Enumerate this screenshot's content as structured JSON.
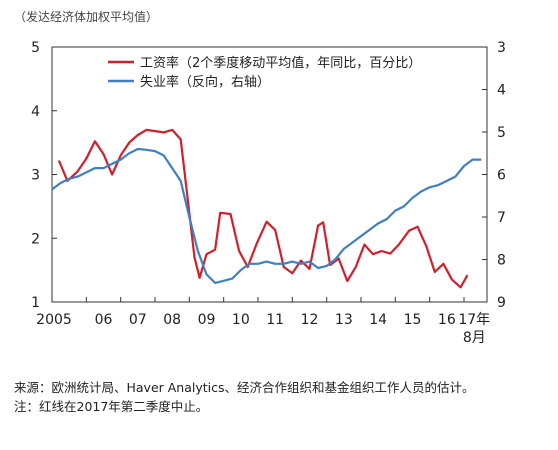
{
  "chart_data": {
    "type": "line",
    "title": "",
    "unit_label": "（发达经济体加权平均值）",
    "x_tick_labels": [
      "2005",
      "06",
      "07",
      "08",
      "09",
      "10",
      "11",
      "12",
      "13",
      "14",
      "15",
      "16",
      "17年",
      "8月"
    ],
    "y_left": {
      "ylim": [
        1,
        5
      ],
      "ticks": [
        1,
        2,
        3,
        4,
        5
      ]
    },
    "y_right": {
      "ylim": [
        9,
        3
      ],
      "inverted": true,
      "ticks": [
        3,
        4,
        5,
        6,
        7,
        8,
        9
      ]
    },
    "legend": {
      "placement": "top-center"
    },
    "grid": false,
    "series": [
      {
        "name": "工资率（2个季度移动平均值，年同比，百分比）",
        "axis": "left",
        "color": "#d0202a",
        "points": [
          [
            2005.2,
            3.22
          ],
          [
            2005.45,
            2.9
          ],
          [
            2005.75,
            3.05
          ],
          [
            2006.0,
            3.25
          ],
          [
            2006.25,
            3.52
          ],
          [
            2006.5,
            3.32
          ],
          [
            2006.75,
            3.0
          ],
          [
            2007.0,
            3.3
          ],
          [
            2007.25,
            3.5
          ],
          [
            2007.5,
            3.62
          ],
          [
            2007.75,
            3.7
          ],
          [
            2008.0,
            3.68
          ],
          [
            2008.25,
            3.66
          ],
          [
            2008.5,
            3.7
          ],
          [
            2008.75,
            3.55
          ],
          [
            2009.0,
            2.4
          ],
          [
            2009.15,
            1.7
          ],
          [
            2009.3,
            1.38
          ],
          [
            2009.5,
            1.75
          ],
          [
            2009.75,
            1.82
          ],
          [
            2009.9,
            2.4
          ],
          [
            2010.2,
            2.38
          ],
          [
            2010.45,
            1.8
          ],
          [
            2010.7,
            1.55
          ],
          [
            2010.95,
            1.9
          ],
          [
            2011.25,
            2.26
          ],
          [
            2011.5,
            2.13
          ],
          [
            2011.75,
            1.55
          ],
          [
            2012.0,
            1.45
          ],
          [
            2012.25,
            1.65
          ],
          [
            2012.5,
            1.52
          ],
          [
            2012.75,
            2.2
          ],
          [
            2012.9,
            2.25
          ],
          [
            2013.1,
            1.58
          ],
          [
            2013.35,
            1.68
          ],
          [
            2013.6,
            1.33
          ],
          [
            2013.85,
            1.55
          ],
          [
            2014.1,
            1.9
          ],
          [
            2014.35,
            1.75
          ],
          [
            2014.6,
            1.8
          ],
          [
            2014.85,
            1.76
          ],
          [
            2015.1,
            1.9
          ],
          [
            2015.4,
            2.12
          ],
          [
            2015.65,
            2.18
          ],
          [
            2015.9,
            1.88
          ],
          [
            2016.15,
            1.47
          ],
          [
            2016.4,
            1.6
          ],
          [
            2016.65,
            1.35
          ],
          [
            2016.9,
            1.23
          ],
          [
            2017.1,
            1.42
          ]
        ]
      },
      {
        "name": "失业率（反向，右轴）",
        "axis": "right",
        "color": "#3f7fc4",
        "points": [
          [
            2005.0,
            6.35
          ],
          [
            2005.25,
            6.2
          ],
          [
            2005.5,
            6.1
          ],
          [
            2005.75,
            6.05
          ],
          [
            2006.0,
            5.95
          ],
          [
            2006.25,
            5.85
          ],
          [
            2006.5,
            5.85
          ],
          [
            2006.75,
            5.75
          ],
          [
            2007.0,
            5.65
          ],
          [
            2007.25,
            5.5
          ],
          [
            2007.5,
            5.4
          ],
          [
            2007.75,
            5.42
          ],
          [
            2008.0,
            5.45
          ],
          [
            2008.25,
            5.55
          ],
          [
            2008.5,
            5.85
          ],
          [
            2008.75,
            6.15
          ],
          [
            2009.0,
            7.0
          ],
          [
            2009.25,
            7.8
          ],
          [
            2009.5,
            8.35
          ],
          [
            2009.75,
            8.55
          ],
          [
            2010.0,
            8.5
          ],
          [
            2010.25,
            8.45
          ],
          [
            2010.5,
            8.25
          ],
          [
            2010.75,
            8.1
          ],
          [
            2011.0,
            8.1
          ],
          [
            2011.25,
            8.05
          ],
          [
            2011.5,
            8.1
          ],
          [
            2011.75,
            8.1
          ],
          [
            2012.0,
            8.05
          ],
          [
            2012.25,
            8.1
          ],
          [
            2012.5,
            8.05
          ],
          [
            2012.75,
            8.2
          ],
          [
            2013.0,
            8.15
          ],
          [
            2013.25,
            8.0
          ],
          [
            2013.5,
            7.75
          ],
          [
            2013.75,
            7.6
          ],
          [
            2014.0,
            7.45
          ],
          [
            2014.25,
            7.3
          ],
          [
            2014.5,
            7.15
          ],
          [
            2014.75,
            7.05
          ],
          [
            2015.0,
            6.85
          ],
          [
            2015.25,
            6.75
          ],
          [
            2015.5,
            6.55
          ],
          [
            2015.75,
            6.4
          ],
          [
            2016.0,
            6.3
          ],
          [
            2016.25,
            6.25
          ],
          [
            2016.5,
            6.15
          ],
          [
            2016.75,
            6.05
          ],
          [
            2017.0,
            5.8
          ],
          [
            2017.25,
            5.65
          ],
          [
            2017.5,
            5.65
          ]
        ]
      }
    ]
  },
  "notes": {
    "source": "来源：欧洲统计局、Haver Analytics、经济合作组织和基金组织工作人员的估计。",
    "note": "注：红线在2017年第二季度中止。"
  }
}
